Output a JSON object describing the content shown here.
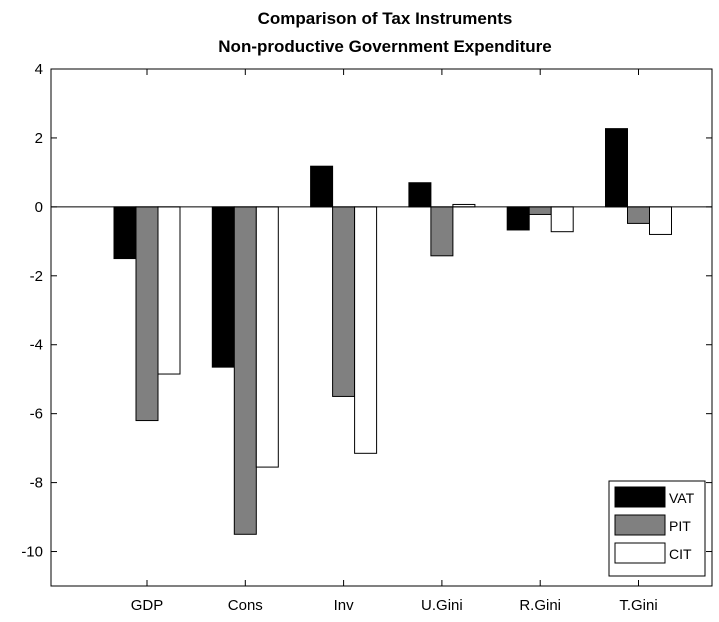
{
  "chart_data": {
    "type": "bar",
    "title": "Comparison of Tax Instruments",
    "subtitle": "Non-productive Government Expenditure",
    "xlabel": "",
    "ylabel": "",
    "categories": [
      "GDP",
      "Cons",
      "Inv",
      "U.Gini",
      "R.Gini",
      "T.Gini"
    ],
    "series": [
      {
        "name": "VAT",
        "color": "#000000",
        "values": [
          -1.5,
          -4.65,
          1.18,
          0.7,
          -0.67,
          2.27
        ]
      },
      {
        "name": "PIT",
        "color": "#808080",
        "values": [
          -6.2,
          -9.5,
          -5.5,
          -1.42,
          -0.22,
          -0.48
        ]
      },
      {
        "name": "CIT",
        "color": "#ffffff",
        "values": [
          -4.85,
          -7.55,
          -7.15,
          0.07,
          -0.72,
          -0.8
        ]
      }
    ],
    "ylim": [
      -11,
      4
    ],
    "yticks": [
      -10,
      -8,
      -6,
      -4,
      -2,
      0,
      2,
      4
    ],
    "ytick_labels": [
      "-10",
      "-8",
      "-6",
      "-4",
      "-2",
      "0",
      "2",
      "4"
    ],
    "grid": false,
    "legend_position": "bottom-right"
  }
}
